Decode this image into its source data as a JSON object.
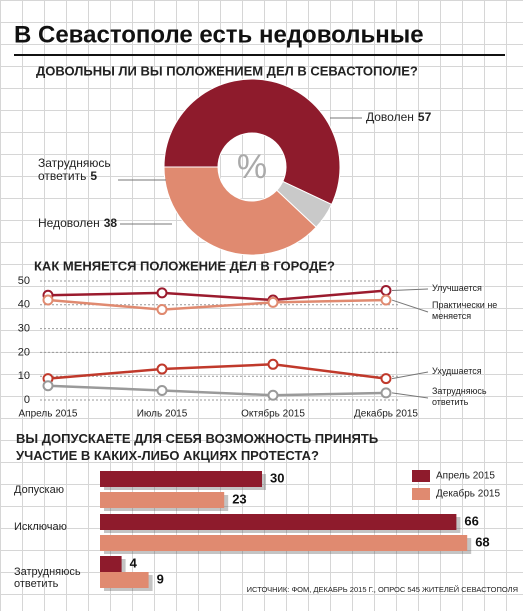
{
  "title": "В Севастополе есть недовольные",
  "chart_data": [
    {
      "type": "pie",
      "title": "ДОВОЛЬНЫ ЛИ ВЫ ПОЛОЖЕНИЕМ ДЕЛ В СЕВАСТОПОЛЕ?",
      "center_label": "%",
      "categories": [
        "Доволен",
        "Затрудняюсь ответить",
        "Недоволен"
      ],
      "values": [
        57,
        5,
        38
      ],
      "colors": [
        "#8e1b2c",
        "#c9c9c9",
        "#e08a70"
      ]
    },
    {
      "type": "line",
      "title": "КАК МЕНЯЕТСЯ ПОЛОЖЕНИЕ ДЕЛ В ГОРОДЕ?",
      "categories": [
        "Апрель 2015",
        "Июль 2015",
        "Октябрь 2015",
        "Декабрь 2015"
      ],
      "ylim": [
        0,
        50
      ],
      "yticks": [
        0,
        10,
        20,
        30,
        40,
        50
      ],
      "grid": true,
      "series": [
        {
          "name": "Улучшается",
          "color": "#9b1b2e",
          "values": [
            44,
            45,
            42,
            46
          ]
        },
        {
          "name": "Практически не меняется",
          "color": "#e08a70",
          "values": [
            42,
            38,
            41,
            42
          ]
        },
        {
          "name": "Ухудшается",
          "color": "#c0392b",
          "values": [
            9,
            13,
            15,
            9
          ]
        },
        {
          "name": "Затрудняюсь ответить",
          "color": "#9a9a9a",
          "values": [
            6,
            4,
            2,
            3
          ]
        }
      ]
    },
    {
      "type": "hbar",
      "title": "ВЫ ДОПУСКАЕТЕ ДЛЯ СЕБЯ ВОЗМОЖНОСТЬ ПРИНЯТЬ УЧАСТИЕ В КАКИХ-ЛИБО АКЦИЯХ ПРОТЕСТА?",
      "categories": [
        "Допускаю",
        "Исключаю",
        "Затрудняюсь ответить"
      ],
      "series": [
        {
          "name": "Апрель 2015",
          "color": "#8e1b2c",
          "values": [
            30,
            66,
            4
          ]
        },
        {
          "name": "Декабрь 2015",
          "color": "#e08a70",
          "values": [
            23,
            68,
            9
          ]
        }
      ]
    }
  ],
  "source": "ИСТОЧНИК: ФОМ, ДЕКАБРЬ 2015 Г., ОПРОС 545 ЖИТЕЛЕЙ СЕВАСТОПОЛЯ"
}
